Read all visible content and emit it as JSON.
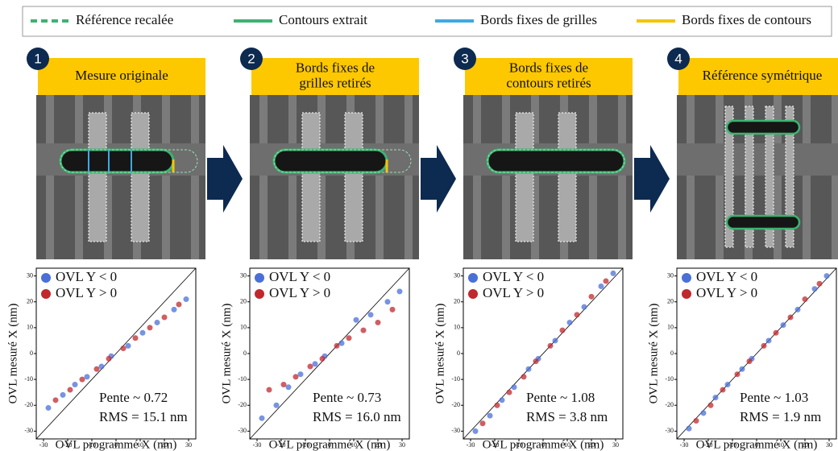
{
  "legend": [
    {
      "name": "Référence recalée",
      "color": "#3cb371",
      "style": "dashed"
    },
    {
      "name": "Contours extrait",
      "color": "#3cb371",
      "style": "solid"
    },
    {
      "name": "Bords fixes de grilles",
      "color": "#3fa9e0",
      "style": "solid"
    },
    {
      "name": "Bords fixes de contours",
      "color": "#f5c400",
      "style": "solid"
    }
  ],
  "panels": [
    {
      "number": "1",
      "title": [
        "Mesure originale"
      ]
    },
    {
      "number": "2",
      "title": [
        "Bords fixes de",
        "grilles retirés"
      ]
    },
    {
      "number": "3",
      "title": [
        "Bords fixes de",
        "contours retirés"
      ]
    },
    {
      "number": "4",
      "title": [
        "Référence symétrique"
      ]
    }
  ],
  "chart_data": [
    {
      "type": "scatter",
      "xlabel": "OVL programmé X (nm)",
      "ylabel": "OVL mesuré X (nm)",
      "xlim": [
        -33,
        33
      ],
      "ylim": [
        -33,
        33
      ],
      "xticks": [
        -30,
        -20,
        -10,
        0,
        10,
        20,
        30
      ],
      "yticks": [
        -30,
        -20,
        -10,
        0,
        10,
        20,
        30
      ],
      "annotations": [
        "Pente ~ 0.72",
        "RMS = 15.1 nm"
      ],
      "series": [
        {
          "name": "OVL Y < 0",
          "color": "#4a6fd8",
          "x": [
            -28,
            -22,
            -17,
            -12,
            -6,
            -2,
            5,
            11,
            17,
            24,
            29
          ],
          "values": [
            -21,
            -16,
            -12,
            -9,
            -5,
            -1,
            3,
            8,
            12,
            17,
            21
          ]
        },
        {
          "name": "OVL Y > 0",
          "color": "#c0282e",
          "x": [
            -25,
            -19,
            -14,
            -8,
            -3,
            3,
            8,
            14,
            20,
            26
          ],
          "values": [
            -18,
            -14,
            -10,
            -6,
            -2,
            2,
            6,
            10,
            14,
            19
          ]
        }
      ]
    },
    {
      "type": "scatter",
      "xlabel": "OVL programmé X (nm)",
      "ylabel": "OVL mesuré X (nm)",
      "xlim": [
        -33,
        33
      ],
      "ylim": [
        -33,
        33
      ],
      "xticks": [
        -30,
        -20,
        -10,
        0,
        10,
        20,
        30
      ],
      "yticks": [
        -30,
        -20,
        -10,
        0,
        10,
        20,
        30
      ],
      "annotations": [
        "Pente ~ 0.73",
        "RMS = 16.0 nm"
      ],
      "series": [
        {
          "name": "OVL Y < 0",
          "color": "#4a6fd8",
          "x": [
            -28,
            -22,
            -17,
            -12,
            -6,
            -2,
            5,
            11,
            17,
            24,
            29
          ],
          "values": [
            -25,
            -20,
            -13,
            -8,
            -4,
            -1,
            4,
            13,
            15,
            20,
            24
          ]
        },
        {
          "name": "OVL Y > 0",
          "color": "#c0282e",
          "x": [
            -25,
            -19,
            -14,
            -8,
            -3,
            3,
            8,
            14,
            20,
            26
          ],
          "values": [
            -14,
            -12,
            -9,
            -5,
            -2,
            3,
            6,
            9,
            12,
            17
          ]
        }
      ]
    },
    {
      "type": "scatter",
      "xlabel": "OVL programmé X (nm)",
      "ylabel": "OVL mesuré X (nm)",
      "xlim": [
        -33,
        33
      ],
      "ylim": [
        -33,
        33
      ],
      "xticks": [
        -30,
        -20,
        -10,
        0,
        10,
        20,
        30
      ],
      "yticks": [
        -30,
        -20,
        -10,
        0,
        10,
        20,
        30
      ],
      "annotations": [
        "Pente ~ 1.08",
        "RMS = 3.8 nm"
      ],
      "series": [
        {
          "name": "OVL Y < 0",
          "color": "#4a6fd8",
          "x": [
            -28,
            -22,
            -17,
            -12,
            -6,
            -2,
            5,
            11,
            17,
            24,
            29
          ],
          "values": [
            -30,
            -24,
            -18,
            -13,
            -6,
            -2,
            5,
            12,
            18,
            26,
            31
          ]
        },
        {
          "name": "OVL Y > 0",
          "color": "#c0282e",
          "x": [
            -25,
            -19,
            -14,
            -8,
            -3,
            3,
            8,
            14,
            20,
            26
          ],
          "values": [
            -27,
            -20,
            -15,
            -9,
            -3,
            3,
            9,
            15,
            22,
            28
          ]
        }
      ]
    },
    {
      "type": "scatter",
      "xlabel": "OVL programmé X (nm)",
      "ylabel": "OVL mesuré X (nm)",
      "xlim": [
        -33,
        33
      ],
      "ylim": [
        -33,
        33
      ],
      "xticks": [
        -30,
        -20,
        -10,
        0,
        10,
        20,
        30
      ],
      "yticks": [
        -30,
        -20,
        -10,
        0,
        10,
        20,
        30
      ],
      "annotations": [
        "Pente ~ 1.03",
        "RMS = 1.9 nm"
      ],
      "series": [
        {
          "name": "OVL Y < 0",
          "color": "#4a6fd8",
          "x": [
            -28,
            -22,
            -17,
            -12,
            -6,
            -2,
            5,
            11,
            17,
            24,
            29
          ],
          "values": [
            -29,
            -23,
            -17,
            -12,
            -6,
            -2,
            5,
            11,
            17,
            25,
            30
          ]
        },
        {
          "name": "OVL Y > 0",
          "color": "#c0282e",
          "x": [
            -25,
            -19,
            -14,
            -8,
            -3,
            3,
            8,
            14,
            20,
            26
          ],
          "values": [
            -26,
            -20,
            -14,
            -8,
            -3,
            3,
            8,
            14,
            21,
            27
          ]
        }
      ]
    }
  ]
}
